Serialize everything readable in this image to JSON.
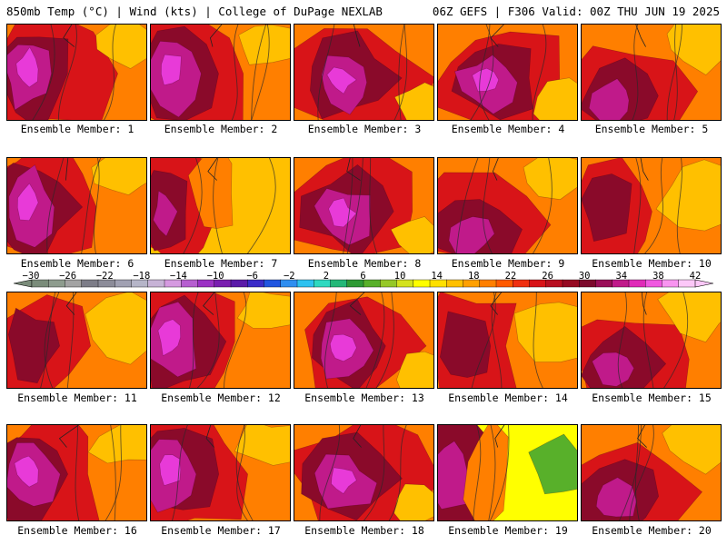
{
  "header": {
    "left_title": "850mb Temp (°C) | Wind (kts) | College of DuPage NEXLAB",
    "right_title": "06Z GEFS | F306 Valid: 00Z THU JUN 19 2025"
  },
  "label_prefix": "Ensemble Member: ",
  "members": [
    {
      "id": "1",
      "label": "Ensemble Member: 1",
      "style": "hot-west"
    },
    {
      "id": "2",
      "label": "Ensemble Member: 2",
      "style": "hot-west"
    },
    {
      "id": "3",
      "label": "Ensemble Member: 3",
      "style": "hot-center"
    },
    {
      "id": "4",
      "label": "Ensemble Member: 4",
      "style": "hot-center"
    },
    {
      "id": "5",
      "label": "Ensemble Member: 5",
      "style": "hot-southwest"
    },
    {
      "id": "6",
      "label": "Ensemble Member: 6",
      "style": "hot-west"
    },
    {
      "id": "7",
      "label": "Ensemble Member: 7",
      "style": "warm-east"
    },
    {
      "id": "8",
      "label": "Ensemble Member: 8",
      "style": "hot-center"
    },
    {
      "id": "9",
      "label": "Ensemble Member: 9",
      "style": "hot-southwest"
    },
    {
      "id": "10",
      "label": "Ensemble Member: 10",
      "style": "warm-mild"
    },
    {
      "id": "11",
      "label": "Ensemble Member: 11",
      "style": "warm-mild"
    },
    {
      "id": "12",
      "label": "Ensemble Member: 12",
      "style": "hot-west"
    },
    {
      "id": "13",
      "label": "Ensemble Member: 13",
      "style": "hot-center"
    },
    {
      "id": "14",
      "label": "Ensemble Member: 14",
      "style": "warm-mild"
    },
    {
      "id": "15",
      "label": "Ensemble Member: 15",
      "style": "hot-southwest"
    },
    {
      "id": "16",
      "label": "Ensemble Member: 16",
      "style": "hot-west"
    },
    {
      "id": "17",
      "label": "Ensemble Member: 17",
      "style": "hot-west"
    },
    {
      "id": "18",
      "label": "Ensemble Member: 18",
      "style": "hot-center"
    },
    {
      "id": "19",
      "label": "Ensemble Member: 19",
      "style": "cool-east"
    },
    {
      "id": "20",
      "label": "Ensemble Member: 20",
      "style": "hot-southwest"
    }
  ],
  "colorbar": {
    "ticks": [
      "−30",
      "−26",
      "−22",
      "−18",
      "−14",
      "−10",
      "−6",
      "−2",
      "2",
      "6",
      "10",
      "14",
      "18",
      "22",
      "26",
      "30",
      "34",
      "38",
      "42"
    ],
    "colors": [
      "#7a8c7a",
      "#8e9c8e",
      "#a3a3a3",
      "#7d7d88",
      "#8c8c99",
      "#a1a1b2",
      "#b5b5c8",
      "#c7b3d6",
      "#d59ae0",
      "#b65fd0",
      "#9b31c4",
      "#7a1fb0",
      "#5a1aa8",
      "#3a2bc8",
      "#2055e0",
      "#2f8ef0",
      "#2ec2f0",
      "#2fd9c0",
      "#24b878",
      "#2e9a34",
      "#58b02a",
      "#96c828",
      "#d4e21e",
      "#ffff00",
      "#ffe000",
      "#ffc000",
      "#ffa000",
      "#ff7f00",
      "#ff5a00",
      "#f03010",
      "#d81418",
      "#b80f20",
      "#960a22",
      "#7c0a2c",
      "#9a0f58",
      "#c01a8a",
      "#e02ab8",
      "#f058e0",
      "#f894f0",
      "#fcc8f8"
    ]
  },
  "palette": {
    "t_hot": "#8a0a2a",
    "t_red": "#d81418",
    "t_orange": "#ff7f00",
    "t_gold": "#ffc000",
    "t_yellow": "#ffff00",
    "t_green": "#58b02a",
    "t_magenta": "#c01a8a",
    "t_pink": "#e83ad8"
  }
}
